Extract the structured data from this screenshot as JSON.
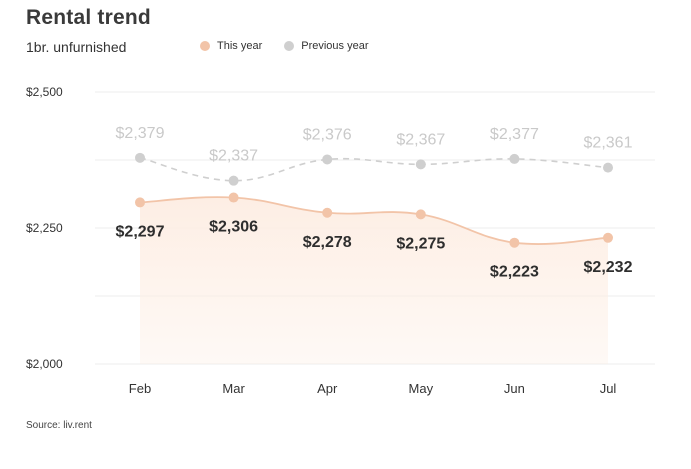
{
  "title": "Rental trend",
  "subtitle": "1br. unfurnished",
  "source": "Source: liv.rent",
  "colors": {
    "this_year": "#f2c4a8",
    "previous_year": "#cfcfcf",
    "previous_year_label": "#c9c9c9",
    "this_year_label": "#2e2e2e",
    "area_fill": "#fdeee4",
    "grid": "#ececec"
  },
  "chart_data": {
    "type": "line",
    "categories": [
      "Feb",
      "Mar",
      "Apr",
      "May",
      "Jun",
      "Jul"
    ],
    "ylim": [
      2000,
      2500
    ],
    "y_ticks": [
      2000,
      2250,
      2500
    ],
    "y_tick_labels": [
      "$2,000",
      "$2,250",
      "$2,500"
    ],
    "grid": true,
    "legend_position": "top",
    "series": [
      {
        "name": "This year",
        "values": [
          2297,
          2306,
          2278,
          2275,
          2223,
          2232
        ],
        "labels": [
          "$2,297",
          "$2,306",
          "$2,278",
          "$2,275",
          "$2,223",
          "$2,232"
        ],
        "style": "solid-with-area"
      },
      {
        "name": "Previous year",
        "values": [
          2379,
          2337,
          2376,
          2367,
          2377,
          2361
        ],
        "labels": [
          "$2,379",
          "$2,337",
          "$2,376",
          "$2,367",
          "$2,377",
          "$2,361"
        ],
        "style": "dashed"
      }
    ]
  }
}
